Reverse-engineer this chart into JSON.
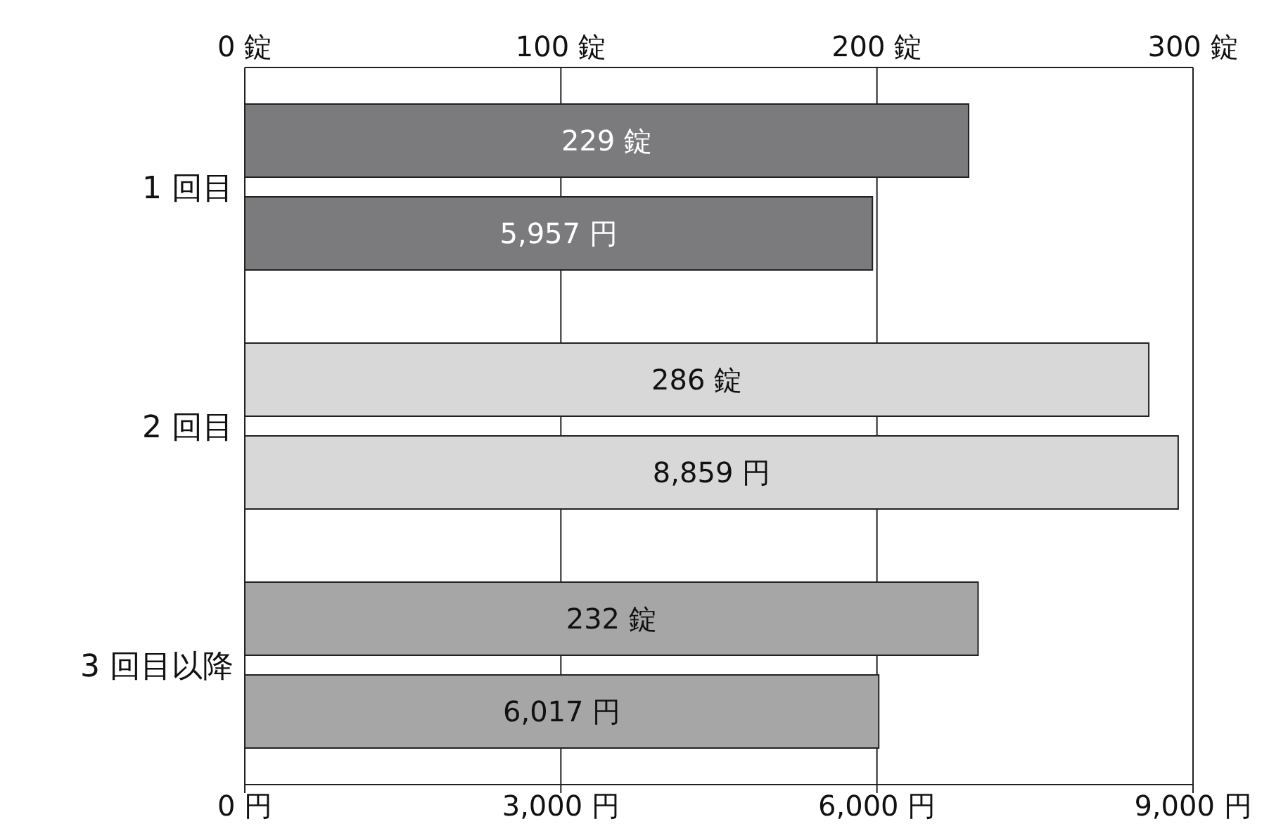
{
  "chart_data": {
    "type": "bar",
    "orientation": "horizontal",
    "categories": [
      "1 回目",
      "2 回目",
      "3 回目以降"
    ],
    "xlim": [
      0,
      9000
    ],
    "xticks": [
      {
        "value": 0,
        "label": "0 円"
      },
      {
        "value": 3000,
        "label": "3,000 円"
      },
      {
        "value": 6000,
        "label": "6,000 円"
      },
      {
        "value": 9000,
        "label": "9,000 円"
      }
    ],
    "x2lim": [
      0,
      300
    ],
    "x2ticks": [
      {
        "value": 0,
        "label": "0 錠"
      },
      {
        "value": 100,
        "label": "100 錠"
      },
      {
        "value": 200,
        "label": "200 錠"
      },
      {
        "value": 300,
        "label": "300 錠"
      }
    ],
    "grid": "x",
    "series": [
      {
        "axis": "x2",
        "colors": [
          "#7b7b7d",
          "#d8d8d8",
          "#a6a6a6"
        ],
        "values": [
          229,
          286,
          232
        ],
        "value_labels": [
          "229 錠",
          "286 錠",
          "232 錠"
        ]
      },
      {
        "colors": [
          "#7b7b7d",
          "#d8d8d8",
          "#a6a6a6"
        ],
        "values": [
          5957,
          8859,
          6017
        ],
        "value_labels": [
          "5,957 円",
          "8,859 円",
          "6,017 円"
        ]
      }
    ]
  }
}
